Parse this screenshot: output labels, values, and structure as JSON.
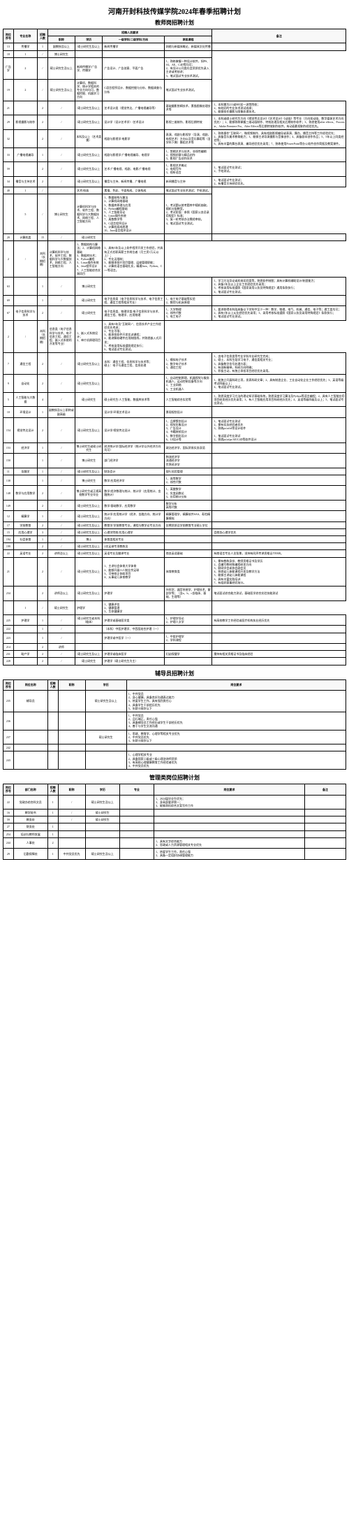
{
  "title": "河南开封科技传媒学院2024年春季招聘计划",
  "section1": {
    "title": "教师岗招聘计划",
    "headers": {
      "seq": "岗位序号",
      "major": "专业名称",
      "num": "招聘人数",
      "title": "职称",
      "degree": "学历",
      "req_group": "招聘人员要求",
      "subject": "一级学科/二级学科/方向",
      "course": "承担课程",
      "remark": "备注"
    },
    "rows": [
      {
        "seq": "13",
        "major": "传播学",
        "num": "1",
        "title": "副教授及以上",
        "degree": "硕士研究生及以上",
        "subject": "新闻传播学",
        "course": "网络与新媒体概论、新媒体文化传播",
        "remark": ""
      },
      {
        "seq": "18",
        "major_span": "",
        "num": "1",
        "title": "/",
        "degree": "博士研究生",
        "subject": "",
        "course": "",
        "remark": ""
      },
      {
        "seq_span": "",
        "major": "广告学",
        "num": "2",
        "title": "/",
        "degree": "硕士研究生及以上",
        "subject": "新闻传播学/广告学、传播学",
        "course": "广告设计、广告创意、平面广告",
        "remark": "1、熟练掌握一种设计软件，如PS、AI、AE、C4D等均可；\n2、有设计公司类社会资质优先录入主讲或考核讲；\n3、笔试面试专业技术测试。"
      },
      {
        "seq": "19",
        "major_span": "",
        "num": "2",
        "title": "/",
        "degree": "硕士研究生及以上",
        "subject": "计算机、数据科学、统计学相关的专业方向均可，数据挖掘、机器学习方向",
        "course": "C语言程序设计、数据挖掘与分析、数据调查与分析",
        "remark": "笔试面试专业技术测试。"
      },
      {
        "seq": "21",
        "major": "",
        "num": "2",
        "title": "/",
        "degree": "硕士研究生及以上",
        "subject": "艺术设计类（视觉传达、广播电视编导等）",
        "course": "基础摄影剪辑技术、素描图像处理技术等",
        "remark": "1、本科需为211或985双一流等院校；\n2、有较好的专业技术测试成绩；\n3、能够担任摄影与图像处理技术。"
      },
      {
        "seq": "29",
        "major": "影视摄影与制作",
        "num": "2",
        "title": "/",
        "degree": "硕士研究生及以上",
        "subject": "设计学（设计艺术学）/艺术设计",
        "course": "影视三维制作、影视后期特效",
        "remark": "1、本科或硕士研究生方向《视觉传达设计》《艺术设计》《动画》等专业（方向如动画、数字媒体艺术方向优先）；2、能够熟练掌握三维动画制作、特效处理及相关后期制作软件；3、熟悉使用after effects、Procreate、Adobe Premiere Pro、After Effects等后期特效制作软件，有动画影视制作经验优先。"
      },
      {
        "seq": "32",
        "major": "",
        "num": "2",
        "title": "/",
        "degree": "本科及以上（艺术类需）",
        "subject": "戏剧与影视学/电影学",
        "course": "表演、戏剧与影视学（导演、戏剧、电视艺术）方向以及音乐舞蹈等（含学科下属）舞蹈艺术等",
        "remark": "1、熟练操作\"互联网+\"、微视频制作、具有戏剧影视编导或表演、舞台、播音主持等工作经验优先；\n2、具备音乐美术教育能力；3、能够主讲导演摄影与音像创作；4、具备剧本创作作品；5、5年以上同类经验等；\n6、具有丰富的舞台表演、编导经验优先录用；7、熟练使用PowerPoint等办公软件创作简报及教案课件。"
      },
      {
        "seq": "33",
        "major": "广播电视编导",
        "num": "1",
        "title": "/",
        "degree": "硕士研究生及以上",
        "subject": "戏剧与影视学/广播电视编导、电视学",
        "course": "1、剪辑艺术与技术、非线性编辑\n2、视频创意与精品创作\n3、影视广告创作技术",
        "remark": ""
      },
      {
        "seq": "59",
        "major": "",
        "num": "2",
        "title": "/",
        "degree": "硕士研究生及以上",
        "subject": "艺术/广播电视、戏剧、电影/广播电视",
        "course": "1、影视艺术概论\n2、电视写作\n3、视听语言",
        "remark": "1、笔试面试专业测试；\n2、手绘测试。"
      },
      {
        "seq": "34",
        "major": "播音与主持艺术",
        "num": "2",
        "title": "/",
        "degree": "硕士研究生及以上",
        "subject": "播音与主持、新闻传播、广播电视",
        "course": "新闻播音与主持",
        "remark": "1、笔试面试专业测试；\n2、有播音主持经验优先。"
      },
      {
        "seq": "40",
        "major_span": "",
        "num": "1",
        "title": "/",
        "degree": "",
        "subject": "艺术/绘画",
        "course": "素描、色彩、平面构成、立体构成",
        "remark": "笔试面试专业技术测试；手绘测试。"
      },
      {
        "seq_span": "",
        "major": "",
        "num": "5",
        "title": "/",
        "degree": "博士研究生",
        "subject": "计算机科学与技术、软件工程、数据科学与大数据技术、网络工程、人工智能方向",
        "course": "1、数据结构与算法\n2、计算机网络基础\n3、数据库原理与应用\n4、Python编程基础\n5、人工智能导论\n6、Linux操作系统\n7、离散数学等\n8、C语言程序设计\n9、计算机组成原理\n10、Java语言程序设计",
        "remark": "1、考试题从统考题库中随机抽取，随机分配教室。\n2、考试阶段：参照《国家公务员录用规定》标准；\n3、复一轮考核办法需经审核。\n4、笔试面试专业测试。"
      },
      {
        "seq": "20",
        "major": "计算机类",
        "num": "15",
        "title": "/",
        "degree": "硕士研究生",
        "subject": "",
        "course": "",
        "remark": ""
      },
      {
        "seq_span": "",
        "major_span": "",
        "num": "2",
        "title": "/",
        "degree": "本科（长期招聘）",
        "subject": "计算机科学与技术、软件工程、数据科学与大数据技术、网络工程、人工智能方向",
        "course": "1、数据结构与算法；2、计算机网络基础\n3、数据库技术；\n4、Python编程\n5、Linux操作系统\n6、Java程序设计\n7、人工智能综合实践项目",
        "remark": "1、具有3年及以上软件程序开发工作经验，并具有正式任职高薪工作岗位者（月工资1万元以上）；\n2、专业无限制；\n3、能够承担IT项目管理、运维管理职能；\n4、计算机语言基础扎实，精通Java、Python、C++等语言。"
      },
      {
        "seq": "63",
        "major": "",
        "num": "1",
        "title": "/",
        "degree": "博士研究生",
        "subject": "",
        "course": "",
        "remark": "1、学习方法导论或机电实验类等，熟悉软件制图；具有计算机辅助设计/制造能力；\n2、具备1年及以上企业工作经验优先录用；\n3、考核录用标准遵照《国家录用公务员特殊规定》通用条款执行；\n4、笔试面试专业测试。"
      },
      {
        "seq": "69",
        "major": "",
        "num": "1",
        "title": "/",
        "degree": "硕士研究生",
        "subject": "电子信息类（电子信息科学与技术、电子信息工程、通信工程等相关专业）",
        "course": "1、电工电子基础等实验\n2、数控与机床原理",
        "remark": ""
      },
      {
        "seq": "67",
        "major": "电子信息科学与技术",
        "num": "2",
        "title": "/",
        "degree": "硕士研究生",
        "subject": "电子信息类、物理学类/电子信息科学与技术、通信工程、物理学、应用物理",
        "course": "1、大学物理\n2、线性代数\n3、电工电子",
        "remark": "1、要求取得本科段具备以下学科中至少一种：数学、物理、电气、机械、通信、电子等；理工类均可；2、具有1年以上从业经验优先录用；3、录用考核标准遵照《国家公务员录用特殊规定》条款执行；\n4、笔试面试专业测试。"
      },
      {
        "seq_span": "",
        "major_span": "",
        "num": "2",
        "title": "/",
        "degree": "本科（长期招聘）",
        "subject": "信息类（电子信息科学与技术、电子信息工程、通信工程、嵌入式系统的开发等专业）",
        "course": "1、嵌入式系统设计；\n2、单片机原理项目",
        "remark": "1、具有3年及\"互联网+\"、信息技术产业工作经验优先考虑；\n2、专业不限；\n3、能承担软件开发实训课程；\n4、能讲解软硬件应用制图线，并熟悉嵌入式开发；\n5、考核录用标准遵照规定执行；\n6、笔试面试专业测试。"
      },
      {
        "seq": "7",
        "major": "通信工程",
        "num": "2",
        "title": "/",
        "degree": "硕士研究生及以上",
        "subject": "本科：通信工程、信息科学与技术等；\n硕士：电子与通信工程、信息处理",
        "course": "1、模拟电子技术\n2、数字电子技术\n3、通信工程",
        "remark": "1、由电子信息类等专业学科毕业研究生完成；\n2、硕士、本科生段学习电子、通信类相关专业；\n3、具备数字信号处理方面；\n4、有创新精神，科研方向明确；\n5、积极主动，有独立承担项目经验优先录用。"
      },
      {
        "seq": "9",
        "major": "自动化",
        "num": "2",
        "title": "/",
        "degree": "硕士研究生及以上",
        "subject": "",
        "course": "1、自动控制原理，机器视觉与服务机器人、运动控制设备等方向\n2、工业网络\n3、工业机器人",
        "remark": "1、能独立开展科研立项，发表科研文章；2、具有制造企业、工业自动化企业工作经验优先；3、英语等级考试四级以上；\n4、笔试面试专业测试。"
      },
      {
        "seq": "5",
        "major": "人工智能与大数据",
        "num": "4",
        "title": "/",
        "degree": "硕士研究生",
        "subject": "硕士研究生/人工智能、数据库技术等",
        "course": "人工智能综合实验等",
        "remark": "1、熟悉深度学习方法的理论知识基础系统，熟悉深度学习算法及Python等语言编程；2、具有人工智能应用项目研发经历优先录用；3、有人工智能应用项目科研经历优先；4、英语等级四级及以上；5、笔试面试专业测试。"
      },
      {
        "seq": "10",
        "major": "环境设计",
        "num": "1",
        "title": "副教授及以上职称或副高级",
        "degree": "",
        "subject": "设计学/环境艺术设计",
        "course": "景观规划设计",
        "remark": ""
      },
      {
        "seq": "154",
        "major": "视觉传达设计",
        "num": "2",
        "title": "/",
        "degree": "硕士研究生及以上",
        "subject": "设计学/视觉传达设计",
        "course": "1、品牌策划设计\n2、视觉形象设计\n3、广告设计\n4、书籍装帧设计\n5、数字图形设计\n6、UI设计等",
        "remark": "1、笔试面试专业测试\n2、需有实务经验者优先\n3、熟练ps/ai/id等设计软件\n\n1、笔试面试专业测试\n2、熟悉ps/ai/pr/AE/C4D等软件设计"
      },
      {
        "seq": "153",
        "major": "经济学",
        "num": "1",
        "title": "/",
        "degree": "博士研究生或硕士研究生",
        "subject": "经济统计学/国际经济学（统计学以外经济方向均可）",
        "course": "政治经济学、国际贸易实务双语",
        "remark": ""
      },
      {
        "seq": "150",
        "major": "",
        "num": "1",
        "title": "/",
        "degree": "博士研究生",
        "subject": "部门经济学",
        "course": "物流经济学\n流通经济学\n世界经济学",
        "remark": ""
      },
      {
        "seq": "11",
        "major": "金融学",
        "num": "1",
        "title": "/",
        "degree": "硕士研究生及以上",
        "subject": "财务会计",
        "course": "银行风险管理",
        "remark": ""
      },
      {
        "seq": "138",
        "major": "",
        "num": "1",
        "title": "/",
        "degree": "博士研究生",
        "subject": "数学/应用经济学",
        "course": "1、高等数学\n2、线性代数",
        "remark": ""
      },
      {
        "seq": "148",
        "major": "数学与应用数学",
        "num": "2",
        "title": "/",
        "degree": "博士研究生或正规高校数学专业毕业",
        "subject": "数学/经济数理与统计、统计学（应用统计、金融统计）",
        "course": "1、离散数学\n2、实变函数论\n3、应用统计分析",
        "remark": ""
      },
      {
        "seq": "149",
        "major": "",
        "num": "2",
        "title": "/",
        "degree": "硕士研究生及以上",
        "subject": "数学/基础数学、应用数学",
        "course": "数学分析\n高等代数",
        "remark": ""
      },
      {
        "seq": "12",
        "major": "精算学",
        "num": "1",
        "title": "/",
        "degree": "硕士研究生及以上",
        "subject": "统计学/应用统计学（经济、金融方向、统计学方向）",
        "course": "精算管理学、精算软件SAS、寿险精算模拟",
        "remark": ""
      },
      {
        "seq": "17",
        "major": "学前教育",
        "num": "2",
        "title": "/",
        "degree": "硕士研究生及以上",
        "subject": "教育学/学前教育专业，课程与教学论专业方向",
        "course": "应聘资质及学前教育专业硕士学位",
        "remark": ""
      },
      {
        "seq": "15",
        "major": "应用心理学",
        "num": "3",
        "title": "/",
        "degree": "硕士研究生及以上",
        "subject": "心理学院校/应用心理学",
        "course": "",
        "remark": "会商务心理学优先"
      },
      {
        "seq": "194",
        "major": "社会体育",
        "num": "1",
        "title": "/",
        "degree": "博士",
        "subject": "体育类相关专业",
        "course": "",
        "remark": ""
      },
      {
        "seq": "199",
        "major": "",
        "num": "2",
        "title": "/",
        "degree": "硕士研究生及以上",
        "subject": "2名足球专项教练员",
        "course": "",
        "remark": ""
      },
      {
        "seq": "22",
        "major": "英语专业",
        "num": "2",
        "title": "讲师及以上",
        "degree": "硕士研究生及以上",
        "subject": "英语专业及翻译专业",
        "course": "商务英语基础",
        "remark": "有商语言专业人员背景，须持有同声传译资格证/TEM8。"
      },
      {
        "seq": "21",
        "major": "",
        "num": "2",
        "title": "/",
        "degree": "硕士研究生及以上",
        "subject": "1、主讲社会体育大学体育\n2、能够开展11人制业余足球\n3、可带校企协助项目\n4、从事幼儿体育教学",
        "course": "体育教育类",
        "remark": "1、需有教练身份、教师资格证书及学历\n2、会编写教材和编程研发方向\n3、联网学会或协会副会员\n4、熟悉幼儿体能课程开发及教学方法\n5、能够主讲幼儿体能课程\n6、具有丰富实践培训\n7、有组织赛事经验加分。"
      },
      {
        "seq": "234",
        "major": "",
        "num": "2",
        "title": "讲师及以上",
        "degree": "硕士研究生及以上",
        "subject": "护理学",
        "course": "外科学、器官系统学、护理技术、解剖学等；（含a、b、c含临床、基础、生理等）",
        "remark": "笔试面试综合能力测试，基础医学综合实验技能测试"
      },
      {
        "seq_span": "",
        "major": "",
        "num": "1",
        "title": "/",
        "degree": "硕士研究生",
        "subject": "护理学",
        "course": "1、健康评估\n2、健康管理\n3、生命健康学",
        "remark": ""
      },
      {
        "seq": "225",
        "major": "护理学",
        "num": "1",
        "title": "/",
        "degree": "硕士研究生或本科（临床）",
        "subject": "护理学或基础医学类",
        "course": "1、护理学导论\n2、护理人文学",
        "remark": "有高校教学工作经验或医疗机构执业经历优先"
      },
      {
        "seq": "222",
        "major": "",
        "num": "1",
        "title": "/",
        "degree": "",
        "subject": "（本科）中医护理学、中西医结合护理（一）",
        "course": "",
        "remark": ""
      },
      {
        "seq": "223",
        "major": "",
        "num": "1",
        "title": "/",
        "degree": "",
        "subject": "护理学或中医学（一）",
        "course": "1、中医护理学\n2、学科课程",
        "remark": ""
      },
      {
        "seq": "214",
        "major": "",
        "num": "2",
        "title": "讲师",
        "degree": "",
        "subject": "",
        "course": "",
        "remark": ""
      },
      {
        "seq": "231",
        "major": "助产学",
        "num": "2",
        "title": "/",
        "degree": "硕士研究生及以上",
        "subject": "护理学或临床医学",
        "course": "妇幼保健学",
        "remark": "需持有相关资格证书及临床经验"
      },
      {
        "seq": "228",
        "major": "",
        "num": "2",
        "title": "/",
        "degree": "硕士研究生",
        "subject": "护理学（硕士研究生为主）",
        "course": "",
        "remark": ""
      }
    ]
  },
  "section2": {
    "title": "辅导员招聘计划",
    "headers": {
      "seq": "岗位序号",
      "name": "岗位名称",
      "num": "招聘人数",
      "title": "职称",
      "degree": "学历",
      "req": "岗位要求"
    },
    "rows": [
      {
        "seq": "235",
        "name": "辅导员",
        "num": "",
        "title": "",
        "degree": "硕士研究生及以上",
        "req": "1、中共党员\n2、身心健康，具备良好沟通表达能力\n3、热爱学生工作，具有强烈责任心\n4、具备学生干部经历优先\n5、年龄35周岁以下"
      },
      {
        "seq": "236",
        "name": "",
        "num": "",
        "title": "",
        "degree": "",
        "req": "1、中共党员\n2、品行端正，责任心强\n3、具备辅导员工作经历或学生干部经历优先\n4、善于与学生交流沟通"
      },
      {
        "seq": "237",
        "name": "",
        "num": "",
        "title": "",
        "degree": "硕士研究生",
        "req": "1、思政、教育学、心理学等相关专业优先\n2、中共党员优先\n3、年龄35周岁以下"
      },
      {
        "seq": "242",
        "name": "",
        "num": "",
        "title": "",
        "degree": "",
        "req": ""
      },
      {
        "seq": "243",
        "name": "",
        "num": "",
        "title": "",
        "degree": "",
        "req": "1、心理学相关专业\n2、具备国家二级或三级心理咨询师资质\n3、有高校心理健康教育工作经验者优先\n4、中共党员优先"
      }
    ]
  },
  "section3": {
    "title": "管理类岗位招聘计划",
    "headers": {
      "seq": "岗位序号",
      "dept": "部门名称",
      "num": "招聘人数",
      "title": "职称",
      "degree": "学历",
      "major": "专业",
      "req": "岗位要求",
      "remark": "备注"
    },
    "rows": [
      {
        "seq": "22",
        "dept": "党政办综合科文员",
        "num": "1",
        "title": "/",
        "degree": "硕士研究生及以上",
        "major": "",
        "req": "1、2024届毕业生优先；\n2、身高部要求统一；\n3、能够承担综合文案写作工作",
        "remark": ""
      },
      {
        "seq": "16",
        "dept": "教学秘书",
        "num": "1",
        "title": "/",
        "degree": "硕士研究生",
        "major": "",
        "req": "",
        "remark": ""
      },
      {
        "seq": "59",
        "dept": "教务处",
        "num": "",
        "title": "/",
        "degree": "硕士研究生",
        "major": "",
        "req": "",
        "remark": ""
      },
      {
        "seq": "27",
        "dept": "财务处",
        "num": "1",
        "title": "",
        "degree": "",
        "major": "",
        "req": "",
        "remark": ""
      },
      {
        "seq": "254",
        "dept": "培训与教师发展",
        "num": "1",
        "title": "",
        "degree": "",
        "major": "",
        "req": "",
        "remark": ""
      },
      {
        "seq": "244",
        "dept": "人事处",
        "num": "2",
        "title": "",
        "degree": "",
        "major": "",
        "req": "1、具有文字综合能力\n2、思政或人力资源管理相关专业优先",
        "remark": ""
      },
      {
        "seq": "29",
        "dept": "后勤保障处",
        "num": "1",
        "title": "中共党员优先",
        "degree": "硕士研究生及以上",
        "major": "",
        "req": "1、热爱学生工作，责任心强\n2、具备一定组织协调管理能力",
        "remark": ""
      }
    ]
  }
}
